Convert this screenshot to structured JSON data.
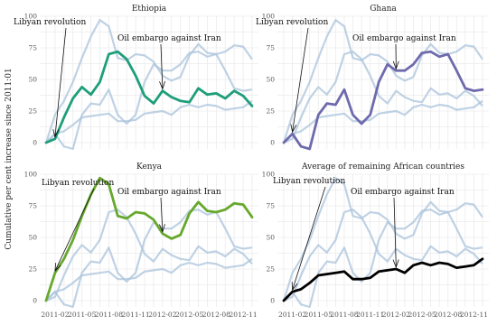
{
  "chart_data": {
    "type": "line",
    "ylabel": "Cumulative per cent increase since 2011:01",
    "xlabel": "",
    "ylim": [
      -5,
      100
    ],
    "y_ticks": [
      0,
      25,
      50,
      75,
      100
    ],
    "x_ticks": [
      "2011-02",
      "2011-05",
      "2011-08",
      "2011-11",
      "2012-02",
      "2012-05",
      "2012-08",
      "2012-11"
    ],
    "x": [
      "2011-01",
      "2011-02",
      "2011-03",
      "2011-04",
      "2011-05",
      "2011-06",
      "2011-07",
      "2011-08",
      "2011-09",
      "2011-10",
      "2011-11",
      "2011-12",
      "2012-01",
      "2012-02",
      "2012-03",
      "2012-04",
      "2012-05",
      "2012-06",
      "2012-07",
      "2012-08",
      "2012-09",
      "2012-10",
      "2012-11",
      "2012-12"
    ],
    "grid": true,
    "background_color": "#a9c3db",
    "panels": [
      {
        "title": "Ethiopia",
        "highlight_color": "#1f9e7a",
        "values": [
          0,
          3,
          20,
          35,
          44,
          38,
          48,
          70,
          72,
          66,
          53,
          37,
          31,
          41,
          36,
          33,
          32,
          43,
          38,
          39,
          35,
          41,
          37,
          29
        ]
      },
      {
        "title": "Ghana",
        "highlight_color": "#6e6aad",
        "values": [
          0,
          7,
          -3,
          -5,
          22,
          31,
          30,
          42,
          22,
          15,
          22,
          48,
          62,
          57,
          57,
          62,
          71,
          72,
          68,
          70,
          57,
          43,
          41,
          42
        ]
      },
      {
        "title": "Kenya",
        "highlight_color": "#66a82c",
        "values": [
          0,
          22,
          33,
          48,
          67,
          84,
          97,
          92,
          67,
          65,
          70,
          69,
          64,
          53,
          49,
          52,
          69,
          78,
          71,
          70,
          72,
          77,
          76,
          66
        ]
      },
      {
        "title": "Average of remaining African countries",
        "highlight_color": "#000000",
        "values": [
          0,
          7,
          9,
          14,
          20,
          21,
          22,
          23,
          17,
          17,
          18,
          23,
          24,
          25,
          22,
          28,
          30,
          28,
          30,
          29,
          26,
          27,
          28,
          33
        ]
      }
    ],
    "annotations": [
      {
        "label": "Libyan revolution",
        "x": "2011-02"
      },
      {
        "label": "Oil embargo against Iran",
        "x": "2012-02"
      }
    ]
  }
}
